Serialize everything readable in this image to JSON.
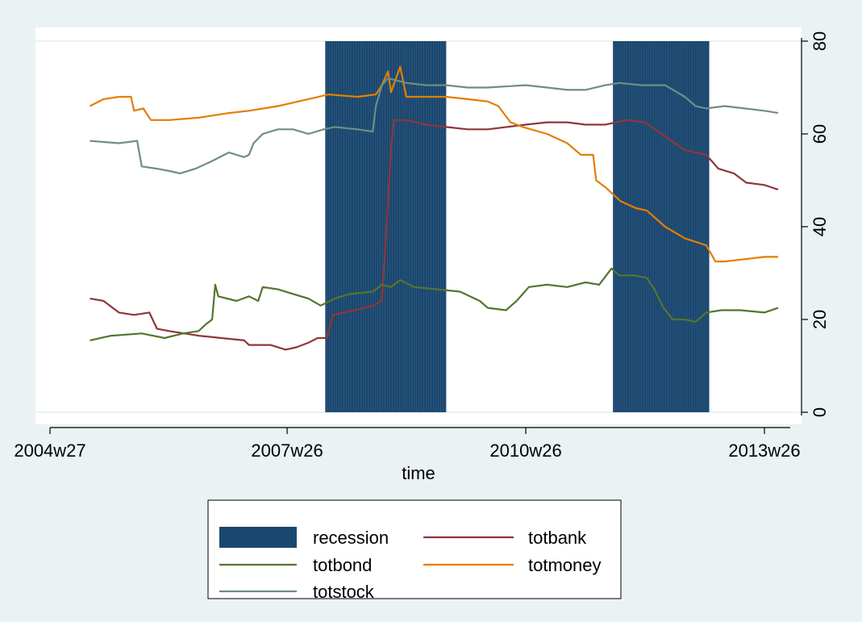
{
  "chart_data": {
    "type": "line",
    "xlabel": "time",
    "ylabel": "",
    "x_ticks": [
      "2004w27",
      "2007w26",
      "2010w26",
      "2013w26"
    ],
    "y_ticks": [
      "0",
      "20",
      "40",
      "60",
      "80"
    ],
    "ylim": [
      0,
      80
    ],
    "xlim": [
      "2004w27",
      "2013w35"
    ],
    "y_axis_side": "right",
    "grid": true,
    "legend_position": "bottom",
    "colors": {
      "recession": "#1a476f",
      "totbank": "#90353b",
      "totbond": "#55752f",
      "totmoney": "#e37e00",
      "totstock": "#6e8e84"
    },
    "recession_periods": [
      {
        "start": "2007w51",
        "end": "2009w26"
      },
      {
        "start": "2011w31",
        "end": "2012w42"
      }
    ],
    "series": [
      {
        "name": "totbank",
        "points": [
          [
            "2005w01",
            24.5
          ],
          [
            "2005w10",
            24.0
          ],
          [
            "2005w20",
            21.5
          ],
          [
            "2005w30",
            21.0
          ],
          [
            "2005w40",
            21.5
          ],
          [
            "2005w45",
            18.0
          ],
          [
            "2006w01",
            17.5
          ],
          [
            "2006w20",
            16.5
          ],
          [
            "2006w35",
            16.0
          ],
          [
            "2006w50",
            15.5
          ],
          [
            "2007w01",
            14.5
          ],
          [
            "2007w15",
            14.5
          ],
          [
            "2007w25",
            13.5
          ],
          [
            "2007w32",
            14.0
          ],
          [
            "2007w40",
            15.0
          ],
          [
            "2007w46",
            16.0
          ],
          [
            "2007w52",
            16.0
          ],
          [
            "2008w04",
            21.0
          ],
          [
            "2008w18",
            22.0
          ],
          [
            "2008w30",
            23.0
          ],
          [
            "2008w36",
            24.0
          ],
          [
            "2008w40",
            45.0
          ],
          [
            "2008w42",
            57.0
          ],
          [
            "2008w44",
            63.0
          ],
          [
            "2008w52",
            63.0
          ],
          [
            "2009w13",
            62.0
          ],
          [
            "2009w26",
            61.5
          ],
          [
            "2009w40",
            61.0
          ],
          [
            "2010w01",
            61.0
          ],
          [
            "2010w26",
            62.0
          ],
          [
            "2010w40",
            62.5
          ],
          [
            "2011w01",
            62.5
          ],
          [
            "2011w13",
            62.0
          ],
          [
            "2011w26",
            62.0
          ],
          [
            "2011w40",
            63.0
          ],
          [
            "2011w52",
            62.5
          ],
          [
            "2012w13",
            59.5
          ],
          [
            "2012w26",
            56.5
          ],
          [
            "2012w40",
            55.5
          ],
          [
            "2012w48",
            52.5
          ],
          [
            "2013w06",
            51.5
          ],
          [
            "2013w14",
            49.5
          ],
          [
            "2013w26",
            49.0
          ],
          [
            "2013w35",
            48.0
          ]
        ]
      },
      {
        "name": "totbond",
        "points": [
          [
            "2005w01",
            15.5
          ],
          [
            "2005w15",
            16.5
          ],
          [
            "2005w35",
            17.0
          ],
          [
            "2005w50",
            16.0
          ],
          [
            "2006w10",
            17.0
          ],
          [
            "2006w20",
            17.5
          ],
          [
            "2006w25",
            19.0
          ],
          [
            "2006w29",
            20.0
          ],
          [
            "2006w31",
            27.5
          ],
          [
            "2006w33",
            25.0
          ],
          [
            "2006w45",
            24.0
          ],
          [
            "2007w01",
            25.0
          ],
          [
            "2007w07",
            24.0
          ],
          [
            "2007w10",
            27.0
          ],
          [
            "2007w20",
            26.5
          ],
          [
            "2007w30",
            25.5
          ],
          [
            "2007w40",
            24.5
          ],
          [
            "2007w48",
            23.0
          ],
          [
            "2008w05",
            24.5
          ],
          [
            "2008w15",
            25.5
          ],
          [
            "2008w30",
            26.0
          ],
          [
            "2008w36",
            27.5
          ],
          [
            "2008w42",
            27.0
          ],
          [
            "2008w48",
            28.5
          ],
          [
            "2009w05",
            27.0
          ],
          [
            "2009w20",
            26.5
          ],
          [
            "2009w35",
            26.0
          ],
          [
            "2009w48",
            24.0
          ],
          [
            "2010w01",
            22.5
          ],
          [
            "2010w13",
            22.0
          ],
          [
            "2010w20",
            24.0
          ],
          [
            "2010w28",
            27.0
          ],
          [
            "2010w40",
            27.5
          ],
          [
            "2011w01",
            27.0
          ],
          [
            "2011w13",
            28.0
          ],
          [
            "2011w22",
            27.5
          ],
          [
            "2011w30",
            31.0
          ],
          [
            "2011w35",
            29.5
          ],
          [
            "2011w45",
            29.5
          ],
          [
            "2012w01",
            29.0
          ],
          [
            "2012w06",
            26.5
          ],
          [
            "2012w12",
            22.5
          ],
          [
            "2012w18",
            20.0
          ],
          [
            "2012w26",
            20.0
          ],
          [
            "2012w33",
            19.5
          ],
          [
            "2012w40",
            21.5
          ],
          [
            "2012w50",
            22.0
          ],
          [
            "2013w10",
            22.0
          ],
          [
            "2013w26",
            21.5
          ],
          [
            "2013w35",
            22.5
          ]
        ]
      },
      {
        "name": "totmoney",
        "points": [
          [
            "2005w01",
            66.0
          ],
          [
            "2005w10",
            67.5
          ],
          [
            "2005w20",
            68.0
          ],
          [
            "2005w28",
            68.0
          ],
          [
            "2005w30",
            65.0
          ],
          [
            "2005w36",
            65.5
          ],
          [
            "2005w41",
            63.0
          ],
          [
            "2006w01",
            63.0
          ],
          [
            "2006w20",
            63.5
          ],
          [
            "2006w40",
            64.5
          ],
          [
            "2007w01",
            65.0
          ],
          [
            "2007w20",
            66.0
          ],
          [
            "2007w40",
            67.5
          ],
          [
            "2008w01",
            68.5
          ],
          [
            "2008w20",
            68.0
          ],
          [
            "2008w32",
            68.5
          ],
          [
            "2008w36",
            70.5
          ],
          [
            "2008w40",
            73.5
          ],
          [
            "2008w42",
            69.0
          ],
          [
            "2008w48",
            74.5
          ],
          [
            "2008w52",
            68.0
          ],
          [
            "2009w13",
            68.0
          ],
          [
            "2009w26",
            68.0
          ],
          [
            "2009w40",
            67.5
          ],
          [
            "2010w01",
            67.0
          ],
          [
            "2010w08",
            66.0
          ],
          [
            "2010w16",
            62.5
          ],
          [
            "2010w24",
            61.5
          ],
          [
            "2010w40",
            60.0
          ],
          [
            "2011w01",
            58.0
          ],
          [
            "2011w10",
            55.5
          ],
          [
            "2011w18",
            55.5
          ],
          [
            "2011w20",
            50.0
          ],
          [
            "2011w26",
            48.5
          ],
          [
            "2011w36",
            45.5
          ],
          [
            "2011w46",
            44.0
          ],
          [
            "2012w01",
            43.5
          ],
          [
            "2012w13",
            40.0
          ],
          [
            "2012w26",
            37.5
          ],
          [
            "2012w40",
            36.0
          ],
          [
            "2012w46",
            32.5
          ],
          [
            "2012w52",
            32.5
          ],
          [
            "2013w13",
            33.0
          ],
          [
            "2013w26",
            33.5
          ],
          [
            "2013w35",
            33.5
          ]
        ]
      },
      {
        "name": "totstock",
        "points": [
          [
            "2005w01",
            58.5
          ],
          [
            "2005w20",
            58.0
          ],
          [
            "2005w32",
            58.5
          ],
          [
            "2005w35",
            53.0
          ],
          [
            "2005w45",
            52.5
          ],
          [
            "2006w01",
            52.0
          ],
          [
            "2006w08",
            51.5
          ],
          [
            "2006w18",
            52.5
          ],
          [
            "2006w28",
            54.0
          ],
          [
            "2006w40",
            56.0
          ],
          [
            "2006w50",
            55.0
          ],
          [
            "2007w01",
            55.5
          ],
          [
            "2007w04",
            58.0
          ],
          [
            "2007w10",
            60.0
          ],
          [
            "2007w20",
            61.0
          ],
          [
            "2007w30",
            61.0
          ],
          [
            "2007w40",
            60.0
          ],
          [
            "2007w50",
            61.0
          ],
          [
            "2008w05",
            61.5
          ],
          [
            "2008w20",
            61.0
          ],
          [
            "2008w30",
            60.5
          ],
          [
            "2008w32",
            66.0
          ],
          [
            "2008w36",
            70.5
          ],
          [
            "2008w40",
            72.0
          ],
          [
            "2008w52",
            71.0
          ],
          [
            "2009w13",
            70.5
          ],
          [
            "2009w26",
            70.5
          ],
          [
            "2009w40",
            70.0
          ],
          [
            "2010w01",
            70.0
          ],
          [
            "2010w26",
            70.5
          ],
          [
            "2010w40",
            70.0
          ],
          [
            "2011w01",
            69.5
          ],
          [
            "2011w13",
            69.5
          ],
          [
            "2011w26",
            70.5
          ],
          [
            "2011w35",
            71.0
          ],
          [
            "2011w50",
            70.5
          ],
          [
            "2012w13",
            70.5
          ],
          [
            "2012w26",
            68.0
          ],
          [
            "2012w33",
            66.0
          ],
          [
            "2012w40",
            65.5
          ],
          [
            "2012w52",
            66.0
          ],
          [
            "2013w13",
            65.5
          ],
          [
            "2013w26",
            65.0
          ],
          [
            "2013w35",
            64.5
          ]
        ]
      }
    ],
    "legend": [
      {
        "label": "recession",
        "kind": "area",
        "color": "#1a476f"
      },
      {
        "label": "totbank",
        "kind": "line",
        "color": "#90353b"
      },
      {
        "label": "totbond",
        "kind": "line",
        "color": "#55752f"
      },
      {
        "label": "totmoney",
        "kind": "line",
        "color": "#e37e00"
      },
      {
        "label": "totstock",
        "kind": "line",
        "color": "#6e8e84"
      }
    ]
  }
}
